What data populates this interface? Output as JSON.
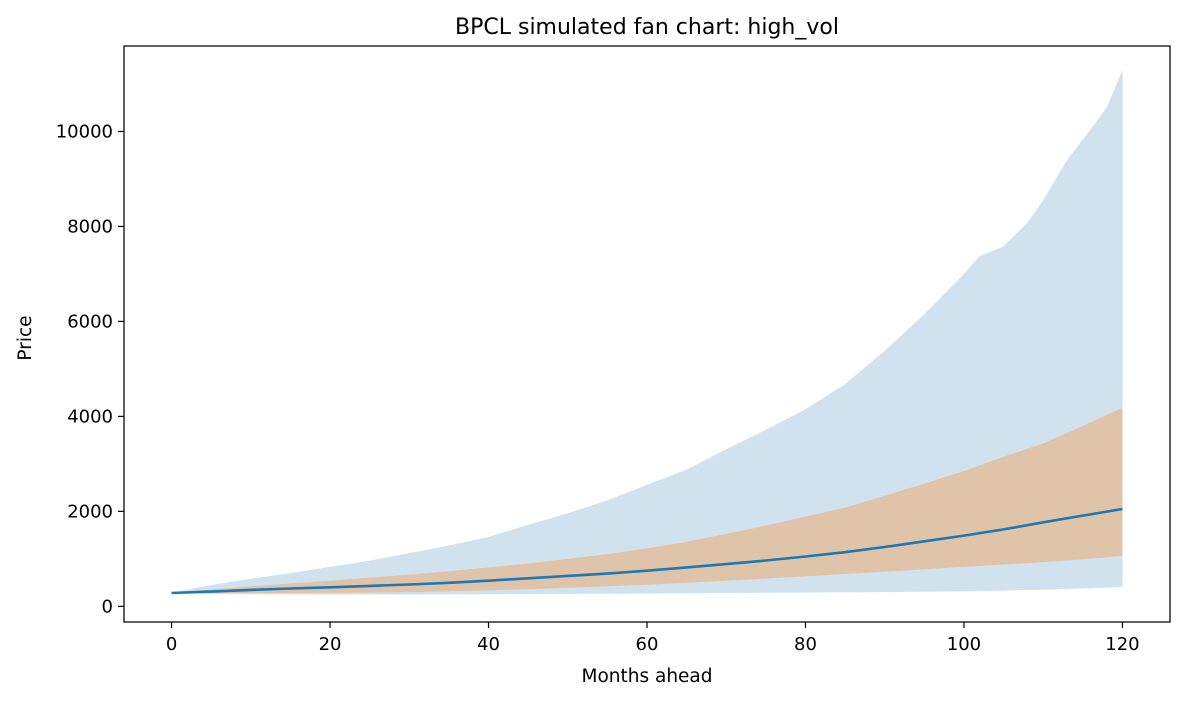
{
  "chart_data": {
    "type": "area",
    "title": "BPCL simulated fan chart: high_vol",
    "xlabel": "Months ahead",
    "ylabel": "Price",
    "xlim": [
      -6,
      126
    ],
    "ylim": [
      -330,
      11800
    ],
    "x_ticks": [
      0,
      20,
      40,
      60,
      80,
      100,
      120
    ],
    "y_ticks": [
      0,
      2000,
      4000,
      6000,
      8000,
      10000
    ],
    "grid": false,
    "legend": "none",
    "series": [
      {
        "kind": "band",
        "color": "#d1e2ef",
        "x": [
          0,
          5,
          10,
          15,
          20,
          25,
          30,
          35,
          40,
          45,
          50,
          55,
          60,
          65,
          70,
          75,
          80,
          85,
          90,
          95,
          100,
          102,
          105,
          108,
          110,
          113,
          116,
          118,
          120
        ],
        "lower": [
          280,
          265,
          255,
          250,
          248,
          248,
          250,
          252,
          255,
          258,
          262,
          266,
          270,
          275,
          280,
          285,
          290,
          295,
          300,
          305,
          315,
          320,
          330,
          345,
          350,
          365,
          380,
          395,
          410
        ],
        "upper": [
          285,
          450,
          580,
          700,
          830,
          960,
          1120,
          1280,
          1460,
          1720,
          1960,
          2230,
          2560,
          2880,
          3310,
          3720,
          4150,
          4680,
          5380,
          6150,
          7000,
          7380,
          7580,
          8080,
          8550,
          9400,
          10050,
          10500,
          11300
        ]
      },
      {
        "kind": "band",
        "color": "#dfc4aa",
        "x": [
          0,
          5,
          10,
          15,
          20,
          25,
          30,
          35,
          40,
          45,
          50,
          55,
          60,
          65,
          70,
          75,
          80,
          85,
          90,
          95,
          100,
          105,
          110,
          115,
          120
        ],
        "lower": [
          280,
          275,
          275,
          278,
          282,
          290,
          300,
          315,
          335,
          360,
          390,
          420,
          455,
          495,
          540,
          585,
          630,
          680,
          730,
          780,
          830,
          880,
          930,
          990,
          1060
        ],
        "upper": [
          285,
          355,
          420,
          480,
          540,
          600,
          670,
          740,
          820,
          900,
          1000,
          1100,
          1220,
          1360,
          1530,
          1700,
          1890,
          2080,
          2330,
          2580,
          2850,
          3150,
          3430,
          3800,
          4180
        ]
      },
      {
        "kind": "line",
        "color": "#1f77b4",
        "x": [
          0,
          5,
          10,
          15,
          20,
          25,
          30,
          35,
          40,
          45,
          50,
          55,
          60,
          65,
          70,
          75,
          80,
          85,
          90,
          95,
          100,
          105,
          110,
          115,
          120
        ],
        "values": [
          280,
          310,
          345,
          375,
          400,
          430,
          460,
          495,
          540,
          590,
          640,
          690,
          750,
          820,
          890,
          965,
          1050,
          1140,
          1250,
          1370,
          1490,
          1620,
          1770,
          1910,
          2050
        ]
      }
    ]
  }
}
